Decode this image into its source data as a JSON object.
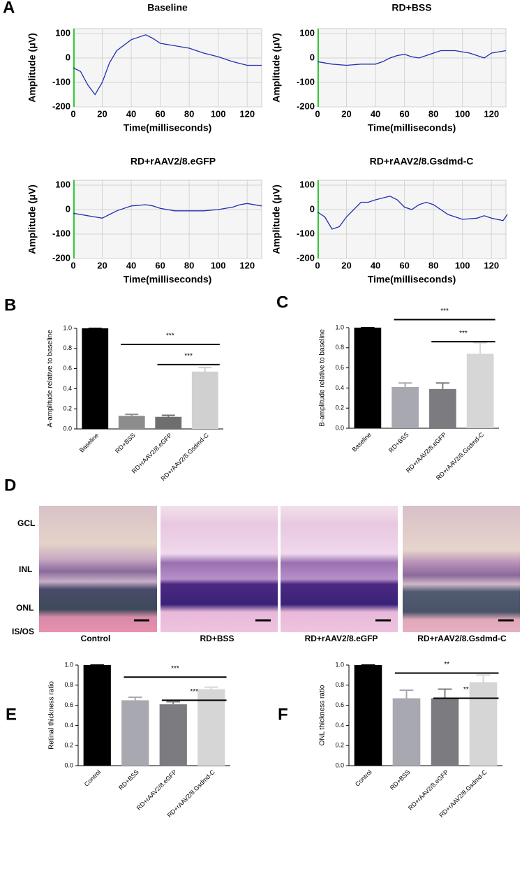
{
  "panel_labels": [
    "A",
    "B",
    "C",
    "D",
    "E",
    "F"
  ],
  "histology": {
    "layer_labels": [
      "GCL",
      "INL",
      "ONL",
      "IS/OS"
    ],
    "captions": [
      "Control",
      "RD+BSS",
      "RD+rAAV2/8.eGFP",
      "RD+rAAV2/8.Gsdmd-C"
    ]
  },
  "chart_data": [
    {
      "type": "line",
      "title": "Baseline",
      "x_label": "Time(milliseconds)",
      "y_label": "Amplitude (μV)",
      "color": "#1f2fb0",
      "x": [
        0,
        5,
        10,
        15,
        20,
        25,
        30,
        40,
        50,
        55,
        60,
        70,
        80,
        90,
        100,
        110,
        120,
        130
      ],
      "values": [
        -40,
        -55,
        -110,
        -150,
        -100,
        -20,
        30,
        75,
        95,
        80,
        60,
        50,
        40,
        20,
        5,
        -15,
        -30,
        -30
      ],
      "xlim": [
        0,
        130
      ],
      "ylim": [
        -200,
        120
      ],
      "xticks": [
        0,
        20,
        40,
        60,
        80,
        100,
        120
      ],
      "yticks": [
        -200,
        -100,
        0,
        100
      ],
      "grid": true
    },
    {
      "type": "line",
      "title": "RD+BSS",
      "x_label": "Time(milliseconds)",
      "y_label": "Amplitude (μV)",
      "color": "#1f2fb0",
      "x": [
        0,
        10,
        20,
        30,
        40,
        45,
        50,
        55,
        60,
        65,
        70,
        75,
        80,
        85,
        95,
        105,
        110,
        115,
        120,
        130
      ],
      "values": [
        -15,
        -25,
        -30,
        -25,
        -25,
        -15,
        0,
        10,
        15,
        5,
        0,
        10,
        20,
        30,
        30,
        20,
        10,
        0,
        20,
        30
      ],
      "xlim": [
        0,
        130
      ],
      "ylim": [
        -200,
        120
      ],
      "xticks": [
        0,
        20,
        40,
        60,
        80,
        100,
        120
      ],
      "yticks": [
        -200,
        -100,
        0,
        100
      ],
      "grid": true
    },
    {
      "type": "line",
      "title": "RD+rAAV2/8.eGFP",
      "x_label": "Time(milliseconds)",
      "y_label": "Amplitude (μV)",
      "color": "#1f2fb0",
      "x": [
        0,
        5,
        10,
        20,
        25,
        30,
        40,
        50,
        55,
        60,
        70,
        80,
        90,
        100,
        110,
        115,
        120,
        130
      ],
      "values": [
        -15,
        -20,
        -25,
        -35,
        -20,
        -5,
        15,
        20,
        15,
        5,
        -5,
        -5,
        -5,
        0,
        10,
        20,
        25,
        15
      ],
      "xlim": [
        0,
        130
      ],
      "ylim": [
        -200,
        120
      ],
      "xticks": [
        0,
        20,
        40,
        60,
        80,
        100,
        120
      ],
      "yticks": [
        -200,
        -100,
        0,
        100
      ],
      "grid": true
    },
    {
      "type": "line",
      "title": "RD+rAAV2/8.Gsdmd-C",
      "x_label": "Time(milliseconds)",
      "y_label": "Amplitude (μV)",
      "color": "#1f2fb0",
      "x": [
        0,
        5,
        10,
        15,
        20,
        25,
        30,
        35,
        40,
        50,
        55,
        60,
        65,
        70,
        75,
        80,
        90,
        100,
        110,
        115,
        120,
        128,
        131
      ],
      "values": [
        -10,
        -30,
        -80,
        -70,
        -30,
        0,
        30,
        30,
        40,
        55,
        40,
        10,
        0,
        20,
        30,
        20,
        -20,
        -40,
        -35,
        -25,
        -35,
        -45,
        -20
      ],
      "xlim": [
        0,
        130
      ],
      "ylim": [
        -200,
        120
      ],
      "xticks": [
        0,
        20,
        40,
        60,
        80,
        100,
        120
      ],
      "yticks": [
        -200,
        -100,
        0,
        100
      ],
      "grid": true
    },
    {
      "type": "bar",
      "y_label": "A-amplitude relative to baseline",
      "categories": [
        "Baseline",
        "RD+BSS",
        "RD+rAAV2/8.eGFP",
        "RD+rAAV2/8.Gsdmd-C"
      ],
      "values": [
        1.0,
        0.13,
        0.12,
        0.57
      ],
      "errors": [
        0,
        0.015,
        0.015,
        0.04
      ],
      "colors": [
        "#000000",
        "#8c8c8c",
        "#6e6e6e",
        "#d0d0d0"
      ],
      "annotations": [
        "***",
        "***"
      ],
      "ylim": [
        0,
        1.0
      ],
      "yticks": [
        {
          "value": 0,
          "label": "0.0"
        },
        0.2,
        0.4,
        0.6,
        0.8,
        {
          "value": 1,
          "label": "1.0"
        }
      ]
    },
    {
      "type": "bar",
      "y_label": "B-amplitude relative to baseline",
      "categories": [
        "Baseline",
        "RD+BSS",
        "RD+rAAV2/8.eGFP",
        "RD+rAAV2/8.Gsdmd-C"
      ],
      "values": [
        1.0,
        0.41,
        0.39,
        0.74
      ],
      "errors": [
        0,
        0.04,
        0.06,
        0.11
      ],
      "colors": [
        "#000000",
        "#a8a8b0",
        "#7c7c80",
        "#d6d6d6"
      ],
      "annotations": [
        "***",
        "***"
      ],
      "ylim": [
        0,
        1.0
      ],
      "yticks": [
        {
          "value": 0,
          "label": "0.0"
        },
        0.2,
        0.4,
        0.6,
        0.8,
        {
          "value": 1,
          "label": "1.0"
        }
      ]
    },
    {
      "type": "bar",
      "y_label": "Retinal thickness ratio",
      "categories": [
        "Control",
        "RD+BSS",
        "RD+rAAV2/8.eGFP",
        "RD+rAAV2/8.Gsdmd-C"
      ],
      "values": [
        1.0,
        0.65,
        0.61,
        0.76
      ],
      "errors": [
        0,
        0.03,
        0.025,
        0.02
      ],
      "colors": [
        "#000000",
        "#a8a8b0",
        "#7c7c80",
        "#d6d6d6"
      ],
      "annotations": [
        "***",
        "***"
      ],
      "ylim": [
        0,
        1.0
      ],
      "yticks": [
        {
          "value": 0,
          "label": "0.0"
        },
        0.2,
        0.4,
        0.6,
        0.8,
        {
          "value": 1,
          "label": "1.0"
        }
      ]
    },
    {
      "type": "bar",
      "y_label": "ONL thickness ratio",
      "categories": [
        "Control",
        "RD+BSS",
        "RD+rAAV2/8.eGFP",
        "RD+rAAV2/8.Gsdmd-C"
      ],
      "values": [
        1.0,
        0.67,
        0.67,
        0.83
      ],
      "errors": [
        0,
        0.08,
        0.09,
        0.07
      ],
      "colors": [
        "#000000",
        "#a8a8b0",
        "#7c7c80",
        "#d6d6d6"
      ],
      "annotations": [
        "**",
        "**"
      ],
      "ylim": [
        0,
        1.0
      ],
      "yticks": [
        {
          "value": 0,
          "label": "0.0"
        },
        0.2,
        0.4,
        0.6,
        0.8,
        {
          "value": 1,
          "label": "1.0"
        }
      ]
    }
  ]
}
